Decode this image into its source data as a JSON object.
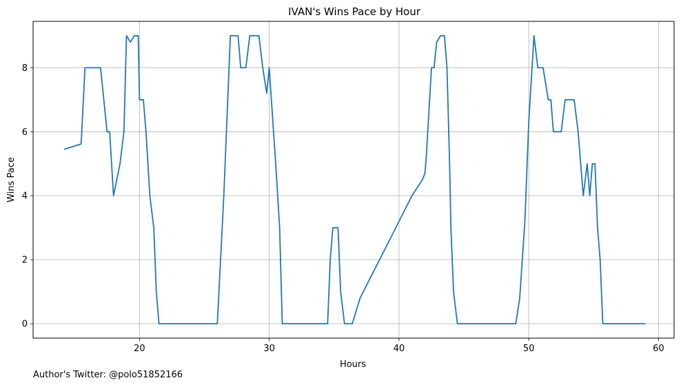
{
  "chart_data": {
    "type": "line",
    "title": "IVAN's Wins Pace by Hour",
    "xlabel": "Hours",
    "ylabel": "Wins Pace",
    "xlim": [
      11.8,
      61.2
    ],
    "ylim": [
      -0.45,
      9.45
    ],
    "xticks": [
      20,
      30,
      40,
      50,
      60
    ],
    "yticks": [
      0,
      2,
      4,
      6,
      8
    ],
    "grid": true,
    "legend": "none",
    "series": [
      {
        "color": "#1f77b4",
        "x": [
          14.2,
          15.5,
          15.8,
          16.5,
          17.0,
          17.5,
          17.7,
          18.0,
          18.5,
          18.8,
          19.0,
          19.3,
          19.6,
          19.9,
          20.0,
          20.3,
          20.5,
          20.8,
          21.1,
          21.3,
          21.5,
          22.0,
          23.0,
          24.0,
          25.0,
          26.0,
          26.5,
          26.8,
          27.0,
          27.2,
          27.6,
          27.8,
          28.2,
          28.5,
          28.7,
          29.2,
          29.5,
          29.8,
          30.0,
          30.5,
          30.8,
          31.0,
          32.0,
          33.0,
          34.0,
          34.5,
          34.7,
          34.9,
          35.3,
          35.5,
          35.8,
          36.0,
          36.4,
          37.0,
          38.0,
          39.0,
          40.0,
          41.0,
          41.8,
          42.0,
          42.1,
          42.5,
          42.7,
          42.9,
          43.2,
          43.5,
          43.7,
          43.9,
          44.0,
          44.2,
          44.5,
          44.8,
          45.0,
          46.0,
          47.0,
          48.0,
          49.0,
          49.3,
          49.7,
          50.0,
          50.4,
          50.7,
          50.9,
          51.1,
          51.5,
          51.7,
          51.9,
          52.1,
          52.5,
          52.8,
          53.0,
          53.5,
          53.8,
          54.2,
          54.5,
          54.7,
          54.9,
          55.1,
          55.3,
          55.5,
          55.7,
          56.0,
          56.3,
          57.0,
          58.0,
          59.0
        ],
        "values": [
          5.45,
          5.62,
          8.0,
          8.0,
          8.0,
          6.0,
          6.0,
          4.0,
          5.0,
          6.0,
          9.0,
          8.8,
          9.0,
          9.0,
          7.0,
          7.0,
          6.0,
          4.0,
          3.0,
          1.0,
          0.0,
          0.0,
          0.0,
          0.0,
          0.0,
          0.0,
          4.0,
          7.0,
          9.0,
          9.0,
          9.0,
          8.0,
          8.0,
          9.0,
          9.0,
          9.0,
          8.0,
          7.2,
          8.0,
          5.0,
          3.0,
          0.0,
          0.0,
          0.0,
          0.0,
          0.0,
          2.0,
          3.0,
          3.0,
          1.0,
          0.0,
          0.0,
          0.0,
          0.8,
          1.6,
          2.4,
          3.2,
          4.0,
          4.5,
          4.7,
          5.2,
          8.0,
          8.0,
          8.8,
          9.0,
          9.0,
          8.0,
          5.0,
          3.0,
          1.0,
          0.0,
          0.0,
          0.0,
          0.0,
          0.0,
          0.0,
          0.0,
          0.8,
          3.2,
          6.3,
          9.0,
          8.0,
          8.0,
          8.0,
          7.0,
          7.0,
          6.0,
          6.0,
          6.0,
          7.0,
          7.0,
          7.0,
          6.0,
          4.0,
          5.0,
          4.0,
          5.0,
          5.0,
          3.0,
          2.0,
          0.0,
          0.0,
          0.0,
          0.0,
          0.0,
          0.0
        ]
      }
    ]
  },
  "footer": {
    "text": "Author's Twitter: @polo51852166"
  }
}
